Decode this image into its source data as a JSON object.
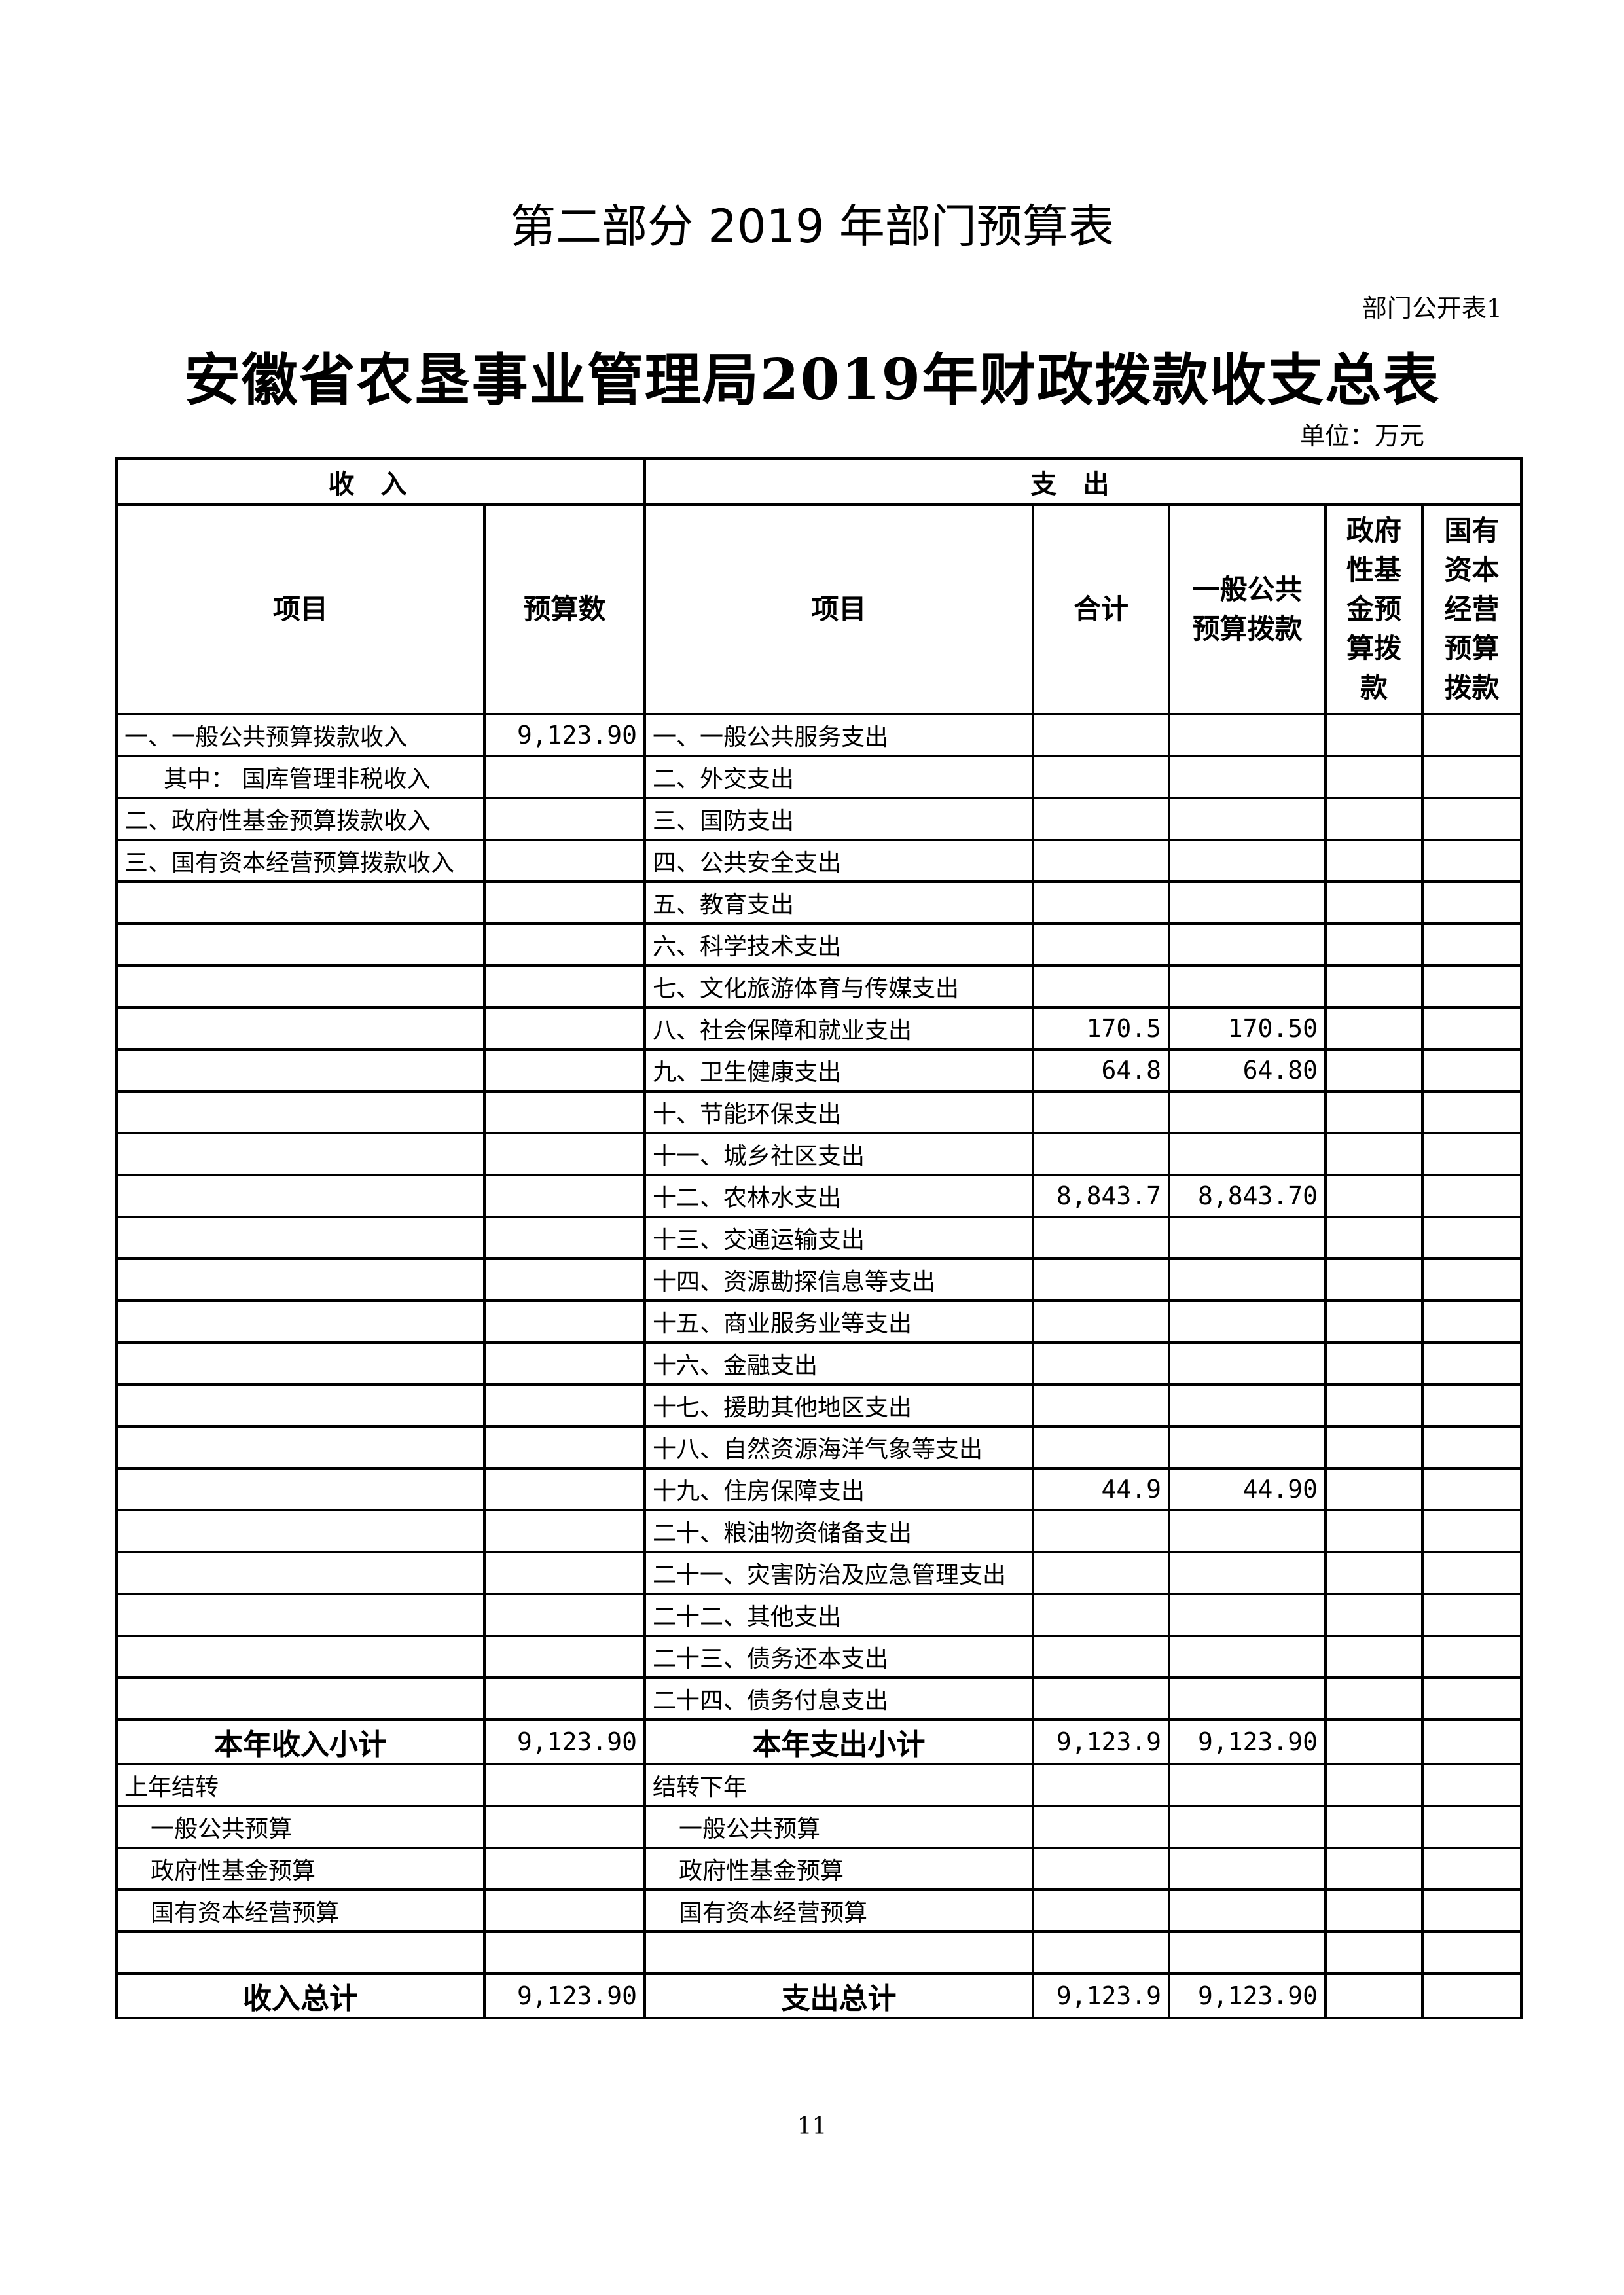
{
  "part_title": "第二部分 2019 年部门预算表",
  "table_no": "部门公开表1",
  "main_title": "安徽省农垦事业管理局2019年财政拨款收支总表",
  "unit": "单位：万元",
  "header": {
    "income": "收入",
    "expense": "支出",
    "columns": [
      "项目",
      "预算数",
      "项目",
      "合计",
      "一般公共预算拨款",
      "政府性基金预算拨款",
      "国有资本经营预算拨款"
    ]
  },
  "rows": [
    {
      "in_item": "一、一般公共预算拨款收入",
      "in_amt": "9,123.90",
      "ex_item": "一、一般公共服务支出",
      "total": "",
      "general": "",
      "fund": "",
      "state": ""
    },
    {
      "in_item": "其中：  国库管理非税收入",
      "in_amt": "",
      "ex_item": "二、外交支出",
      "total": "",
      "general": "",
      "fund": "",
      "state": "",
      "in_indent": 1
    },
    {
      "in_item": "二、政府性基金预算拨款收入",
      "in_amt": "",
      "ex_item": "三、国防支出",
      "total": "",
      "general": "",
      "fund": "",
      "state": ""
    },
    {
      "in_item": "三、国有资本经营预算拨款收入",
      "in_amt": "",
      "ex_item": "四、公共安全支出",
      "total": "",
      "general": "",
      "fund": "",
      "state": ""
    },
    {
      "in_item": "",
      "in_amt": "",
      "ex_item": "五、教育支出",
      "total": "",
      "general": "",
      "fund": "",
      "state": ""
    },
    {
      "in_item": "",
      "in_amt": "",
      "ex_item": "六、科学技术支出",
      "total": "",
      "general": "",
      "fund": "",
      "state": ""
    },
    {
      "in_item": "",
      "in_amt": "",
      "ex_item": "七、文化旅游体育与传媒支出",
      "total": "",
      "general": "",
      "fund": "",
      "state": ""
    },
    {
      "in_item": "",
      "in_amt": "",
      "ex_item": "八、社会保障和就业支出",
      "total": "170.5",
      "general": "170.50",
      "fund": "",
      "state": ""
    },
    {
      "in_item": "",
      "in_amt": "",
      "ex_item": "九、卫生健康支出",
      "total": "64.8",
      "general": "64.80",
      "fund": "",
      "state": ""
    },
    {
      "in_item": "",
      "in_amt": "",
      "ex_item": "十、节能环保支出",
      "total": "",
      "general": "",
      "fund": "",
      "state": ""
    },
    {
      "in_item": "",
      "in_amt": "",
      "ex_item": "十一、城乡社区支出",
      "total": "",
      "general": "",
      "fund": "",
      "state": ""
    },
    {
      "in_item": "",
      "in_amt": "",
      "ex_item": "十二、农林水支出",
      "total": "8,843.7",
      "general": "8,843.70",
      "fund": "",
      "state": ""
    },
    {
      "in_item": "",
      "in_amt": "",
      "ex_item": "十三、交通运输支出",
      "total": "",
      "general": "",
      "fund": "",
      "state": ""
    },
    {
      "in_item": "",
      "in_amt": "",
      "ex_item": "十四、资源勘探信息等支出",
      "total": "",
      "general": "",
      "fund": "",
      "state": ""
    },
    {
      "in_item": "",
      "in_amt": "",
      "ex_item": "十五、商业服务业等支出",
      "total": "",
      "general": "",
      "fund": "",
      "state": ""
    },
    {
      "in_item": "",
      "in_amt": "",
      "ex_item": "十六、金融支出",
      "total": "",
      "general": "",
      "fund": "",
      "state": ""
    },
    {
      "in_item": "",
      "in_amt": "",
      "ex_item": "十七、援助其他地区支出",
      "total": "",
      "general": "",
      "fund": "",
      "state": ""
    },
    {
      "in_item": "",
      "in_amt": "",
      "ex_item": "十八、自然资源海洋气象等支出",
      "total": "",
      "general": "",
      "fund": "",
      "state": ""
    },
    {
      "in_item": "",
      "in_amt": "",
      "ex_item": "十九、住房保障支出",
      "total": "44.9",
      "general": "44.90",
      "fund": "",
      "state": ""
    },
    {
      "in_item": "",
      "in_amt": "",
      "ex_item": "二十、粮油物资储备支出",
      "total": "",
      "general": "",
      "fund": "",
      "state": ""
    },
    {
      "in_item": "",
      "in_amt": "",
      "ex_item": "二十一、灾害防治及应急管理支出",
      "total": "",
      "general": "",
      "fund": "",
      "state": ""
    },
    {
      "in_item": "",
      "in_amt": "",
      "ex_item": "二十二、其他支出",
      "total": "",
      "general": "",
      "fund": "",
      "state": ""
    },
    {
      "in_item": "",
      "in_amt": "",
      "ex_item": "二十三、债务还本支出",
      "total": "",
      "general": "",
      "fund": "",
      "state": ""
    },
    {
      "in_item": "",
      "in_amt": "",
      "ex_item": "二十四、债务付息支出",
      "total": "",
      "general": "",
      "fund": "",
      "state": ""
    },
    {
      "in_item": "本年收入小计",
      "in_amt": "9,123.90",
      "ex_item": "本年支出小计",
      "total": "9,123.9",
      "general": "9,123.90",
      "fund": "",
      "state": "",
      "bold": true
    },
    {
      "in_item": "上年结转",
      "in_amt": "",
      "ex_item": "结转下年",
      "total": "",
      "general": "",
      "fund": "",
      "state": ""
    },
    {
      "in_item": "一般公共预算",
      "in_amt": "",
      "ex_item": "一般公共预算",
      "total": "",
      "general": "",
      "fund": "",
      "state": "",
      "in_indent": 2,
      "ex_indent": 2
    },
    {
      "in_item": "政府性基金预算",
      "in_amt": "",
      "ex_item": "政府性基金预算",
      "total": "",
      "general": "",
      "fund": "",
      "state": "",
      "in_indent": 2,
      "ex_indent": 2
    },
    {
      "in_item": "国有资本经营预算",
      "in_amt": "",
      "ex_item": "国有资本经营预算",
      "total": "",
      "general": "",
      "fund": "",
      "state": "",
      "in_indent": 2,
      "ex_indent": 2
    },
    {
      "in_item": "",
      "in_amt": "",
      "ex_item": "",
      "total": "",
      "general": "",
      "fund": "",
      "state": ""
    },
    {
      "in_item": "收入总计",
      "in_amt": "9,123.90",
      "ex_item": "支出总计",
      "total": "9,123.9",
      "general": "9,123.90",
      "fund": "",
      "state": "",
      "bold": true
    }
  ],
  "page_number": "11"
}
